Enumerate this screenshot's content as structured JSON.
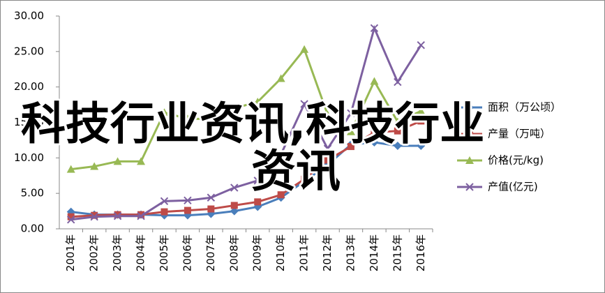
{
  "chart_data": {
    "type": "line",
    "categories": [
      "2001年",
      "2002年",
      "2003年",
      "2004年",
      "2005年",
      "2006年",
      "2007年",
      "2008年",
      "2009年",
      "2010年",
      "2011年",
      "2012年",
      "2013年",
      "2014年",
      "2015年",
      "2016年"
    ],
    "ylim": [
      0,
      30
    ],
    "yticks": [
      {
        "value": 0,
        "label": "0.00"
      },
      {
        "value": 5,
        "label": "5.00"
      },
      {
        "value": 10,
        "label": "10.00"
      },
      {
        "value": 15,
        "label": "15.00"
      },
      {
        "value": 20,
        "label": "20.00"
      },
      {
        "value": 25,
        "label": "25.00"
      },
      {
        "value": 30,
        "label": "30.00"
      }
    ],
    "series": [
      {
        "name": "面积（万公顷）",
        "color": "#4a7ebb",
        "marker": "diamond",
        "values": [
          2.4,
          2.0,
          2.0,
          2.0,
          1.9,
          1.9,
          2.1,
          2.5,
          3.1,
          4.4,
          6.7,
          9.0,
          11.9,
          12.2,
          11.7,
          11.7
        ]
      },
      {
        "name": "产量（万吨）",
        "color": "#be4b48",
        "marker": "square",
        "values": [
          1.7,
          1.9,
          2.0,
          2.0,
          2.4,
          2.6,
          2.8,
          3.3,
          3.8,
          4.8,
          7.0,
          9.7,
          11.6,
          13.6,
          13.8,
          15.2
        ]
      },
      {
        "name": "价格(元/kg)",
        "color": "#98b954",
        "marker": "triangle",
        "values": [
          8.4,
          8.8,
          9.5,
          9.5,
          16.4,
          15.5,
          15.5,
          17.0,
          17.9,
          21.2,
          25.3,
          16.1,
          13.7,
          20.8,
          15.1,
          16.6
        ]
      },
      {
        "name": "产值(亿元)",
        "color": "#7d60a0",
        "marker": "x",
        "values": [
          1.3,
          1.7,
          1.8,
          1.8,
          3.9,
          4.0,
          4.4,
          5.8,
          6.8,
          10.5,
          17.6,
          11.3,
          16.3,
          28.3,
          20.7,
          25.9
        ]
      }
    ],
    "annotations": [
      "科技行业资讯,科技行业",
      "资讯"
    ]
  }
}
